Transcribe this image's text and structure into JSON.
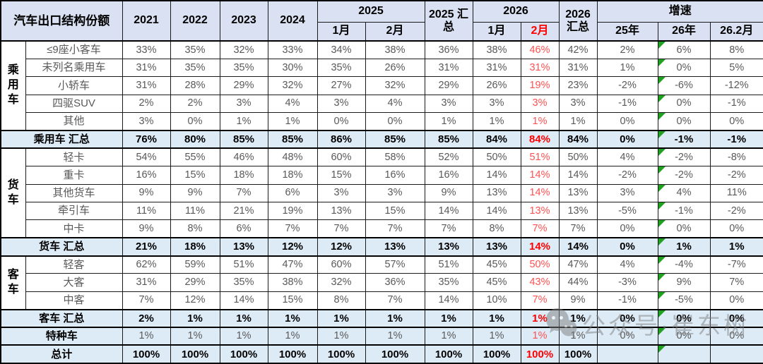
{
  "colors": {
    "header_bg": "#d9e1f2",
    "summary_bg": "#ddebf7",
    "red_bold": "#ff0000",
    "red_light": "#ff5151",
    "gray_text": "#595959",
    "tri_green": "#21a121"
  },
  "header": {
    "title": "汽车出口结构份额",
    "years": [
      "2021",
      "2022",
      "2023",
      "2024"
    ],
    "y2025": "2025",
    "y2025_months": [
      "1月",
      "2月"
    ],
    "sum2025": "2025 汇总",
    "y2026": "2026",
    "y2026_months": [
      "1月",
      "2月"
    ],
    "sum2026": "2026 汇总",
    "growth": "增速",
    "growth_cols": [
      "25年",
      "26年",
      "26.2月"
    ]
  },
  "watermark": {
    "icon": "wechat-icon",
    "text": "公众号·崔东树"
  },
  "chart_data": {
    "type": "table",
    "title": "汽车出口结构份额",
    "columns": [
      "2021",
      "2022",
      "2023",
      "2024",
      "2025-1月",
      "2025-2月",
      "2025汇总",
      "2026-1月",
      "2026-2月",
      "2026汇总",
      "增速25年",
      "增速26年",
      "增速26.2月"
    ],
    "red_column_index": 8,
    "flag_column_index": 11,
    "rows": [
      {
        "group": "乘用车",
        "group_span": 5,
        "label": "≤9座小客车",
        "type": "data",
        "values": [
          "33%",
          "35%",
          "32%",
          "33%",
          "34%",
          "38%",
          "36%",
          "38%",
          "46%",
          "42%",
          "2%",
          "6%",
          "8%"
        ]
      },
      {
        "label": "未列名乘用车",
        "type": "data",
        "values": [
          "31%",
          "35%",
          "35%",
          "30%",
          "35%",
          "26%",
          "31%",
          "31%",
          "31%",
          "31%",
          "1%",
          "0%",
          "5%"
        ]
      },
      {
        "label": "小轿车",
        "type": "data",
        "values": [
          "31%",
          "28%",
          "29%",
          "32%",
          "27%",
          "32%",
          "29%",
          "26%",
          "19%",
          "23%",
          "-2%",
          "-6%",
          "-12%"
        ]
      },
      {
        "label": "四驱SUV",
        "type": "data",
        "values": [
          "2%",
          "2%",
          "3%",
          "4%",
          "3%",
          "4%",
          "3%",
          "3%",
          "3%",
          "3%",
          "-1%",
          "0%",
          "-1%"
        ]
      },
      {
        "label": "其他",
        "type": "data",
        "values": [
          "3%",
          "0%",
          "1%",
          "1%",
          "0%",
          "0%",
          "1%",
          "1%",
          "1%",
          "1%",
          "0%",
          "0%",
          "0%"
        ]
      },
      {
        "label": "乘用车 汇总",
        "type": "summary",
        "values": [
          "76%",
          "80%",
          "85%",
          "85%",
          "86%",
          "85%",
          "85%",
          "84%",
          "84%",
          "84%",
          "0%",
          "-1%",
          "-1%"
        ]
      },
      {
        "group": "货车",
        "group_span": 5,
        "label": "轻卡",
        "type": "data",
        "values": [
          "54%",
          "55%",
          "46%",
          "48%",
          "60%",
          "58%",
          "52%",
          "50%",
          "51%",
          "50%",
          "4%",
          "-2%",
          "-8%"
        ]
      },
      {
        "label": "重卡",
        "type": "data",
        "values": [
          "16%",
          "15%",
          "18%",
          "18%",
          "15%",
          "16%",
          "16%",
          "14%",
          "14%",
          "14%",
          "-2%",
          "-2%",
          "-2%"
        ]
      },
      {
        "label": "其他货车",
        "type": "data",
        "values": [
          "9%",
          "9%",
          "7%",
          "6%",
          "3%",
          "3%",
          "9%",
          "13%",
          "14%",
          "13%",
          "3%",
          "4%",
          "11%"
        ]
      },
      {
        "label": "牵引车",
        "type": "data",
        "values": [
          "11%",
          "11%",
          "21%",
          "19%",
          "13%",
          "15%",
          "14%",
          "14%",
          "13%",
          "13%",
          "-5%",
          "-1%",
          "-2%"
        ]
      },
      {
        "label": "中卡",
        "type": "data",
        "values": [
          "9%",
          "8%",
          "6%",
          "7%",
          "7%",
          "7%",
          "7%",
          "8%",
          "7%",
          "7%",
          "0%",
          "0%",
          "0%"
        ]
      },
      {
        "label": "货车 汇总",
        "type": "summary",
        "values": [
          "21%",
          "18%",
          "13%",
          "12%",
          "12%",
          "13%",
          "13%",
          "13%",
          "14%",
          "14%",
          "0%",
          "1%",
          "1%"
        ]
      },
      {
        "group": "客车",
        "group_span": 3,
        "label": "轻客",
        "type": "data",
        "values": [
          "62%",
          "59%",
          "51%",
          "47%",
          "60%",
          "57%",
          "51%",
          "45%",
          "50%",
          "47%",
          "4%",
          "-4%",
          "-7%"
        ]
      },
      {
        "label": "大客",
        "type": "data",
        "values": [
          "31%",
          "29%",
          "35%",
          "38%",
          "32%",
          "36%",
          "35%",
          "45%",
          "43%",
          "44%",
          "-3%",
          "9%",
          "7%"
        ]
      },
      {
        "label": "中客",
        "type": "data",
        "values": [
          "7%",
          "12%",
          "14%",
          "15%",
          "8%",
          "7%",
          "14%",
          "10%",
          "7%",
          "9%",
          "-1%",
          "-5%",
          "0%"
        ]
      },
      {
        "label": "客车 汇总",
        "type": "summary",
        "values": [
          "2%",
          "1%",
          "1%",
          "1%",
          "1%",
          "1%",
          "1%",
          "1%",
          "1%",
          "1%",
          "0%",
          "0%",
          "0%"
        ]
      },
      {
        "label": "特种车",
        "type": "special",
        "values": [
          "1%",
          "1%",
          "1%",
          "1%",
          "1%",
          "1%",
          "1%",
          "1%",
          "1%",
          "1%",
          "0%",
          "0%",
          "0%"
        ]
      },
      {
        "label": "总计",
        "type": "total",
        "values": [
          "100%",
          "100%",
          "100%",
          "100%",
          "100%",
          "100%",
          "100%",
          "100%",
          "100%",
          "100%",
          "",
          "",
          ""
        ]
      }
    ]
  }
}
